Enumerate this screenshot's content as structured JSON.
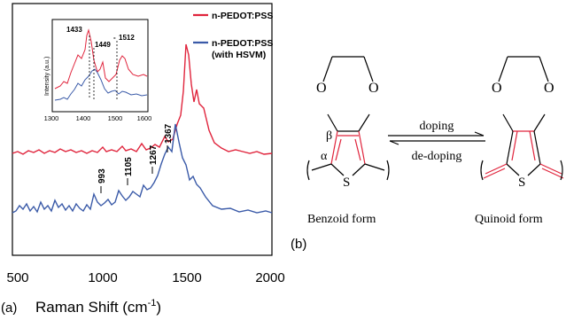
{
  "figure": {
    "panel_a_label": "(a)",
    "panel_b_label": "(b)"
  },
  "chart_data": {
    "type": "line",
    "xlabel_text": "Raman Shift (cm",
    "xlabel_sup": "-1",
    "xlabel_close": ")",
    "xticks": [
      "500",
      "1000",
      "1500",
      "2000"
    ],
    "xlim": [
      500,
      2000
    ],
    "series": [
      {
        "name": "n-PEDOT:PSS",
        "color": "#e0243c"
      },
      {
        "name": "n-PEDOT:PSS",
        "name_line2": "(with HSVM)",
        "color": "#3a5aa8"
      }
    ],
    "peak_labels": [
      "993",
      "1105",
      "1267",
      "1367"
    ],
    "inset": {
      "ylabel": "Intensity (a.u.)",
      "xticks": [
        "1300",
        "1400",
        "1500",
        "1600"
      ],
      "annotations": [
        "1433",
        "1449",
        "1512"
      ]
    }
  },
  "scheme": {
    "arrow_top": "doping",
    "arrow_bottom": "de-doping",
    "left_caption": "Benzoid form",
    "right_caption": "Quinoid form",
    "beta": "β",
    "alpha": "α",
    "atom_O": "O",
    "atom_S": "S"
  }
}
